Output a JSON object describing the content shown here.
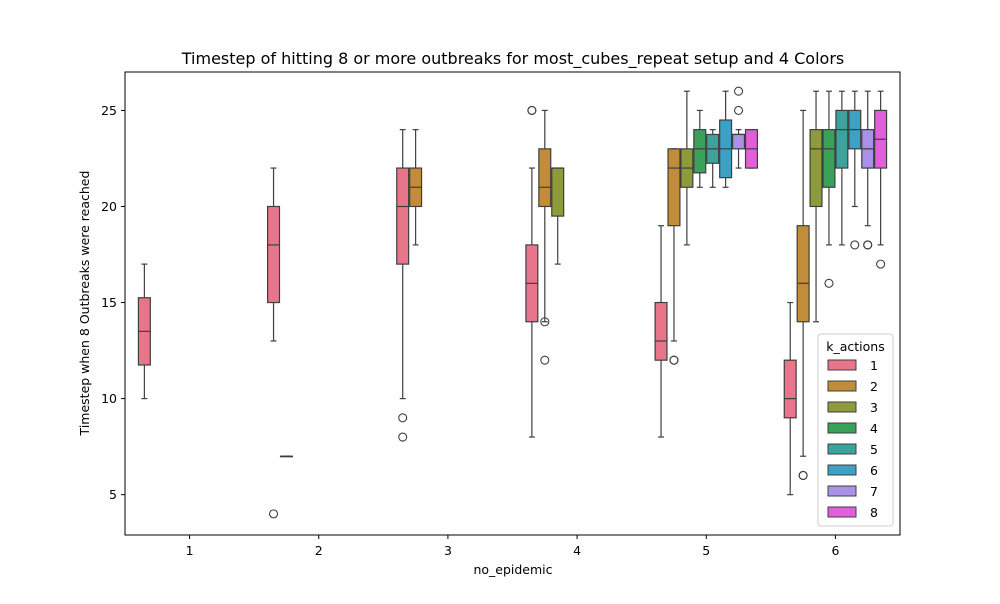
{
  "chart_data": {
    "type": "box",
    "title": "Timestep of hitting 8 or more outbreaks for most_cubes_repeat setup and 4 Colors",
    "xlabel": "no_epidemic",
    "ylabel": "Timestep when 8 Outbreaks were reached",
    "categories": [
      "1",
      "2",
      "3",
      "4",
      "5",
      "6"
    ],
    "ylim": [
      2.9,
      27.0
    ],
    "yticks": [
      5,
      10,
      15,
      20,
      25
    ],
    "legend": {
      "title": "k_actions",
      "placement": "lower-right",
      "entries": [
        {
          "label": "1",
          "color": "#e8768a"
        },
        {
          "label": "2",
          "color": "#c18d3a"
        },
        {
          "label": "3",
          "color": "#8f9a3c"
        },
        {
          "label": "4",
          "color": "#3aa15b"
        },
        {
          "label": "5",
          "color": "#3ba39c"
        },
        {
          "label": "6",
          "color": "#3da1c4"
        },
        {
          "label": "7",
          "color": "#a990e8"
        },
        {
          "label": "8",
          "color": "#e15fdb"
        }
      ]
    },
    "series": [
      {
        "name": "1",
        "boxes": [
          {
            "category": "1",
            "whislo": 10,
            "q1": 11.75,
            "med": 13.5,
            "q3": 15.25,
            "whishi": 17,
            "fliers": []
          },
          {
            "category": "2",
            "whislo": 13,
            "q1": 15,
            "med": 18,
            "q3": 20,
            "whishi": 22,
            "fliers": [
              4
            ]
          },
          {
            "category": "3",
            "whislo": 10,
            "q1": 17,
            "med": 20,
            "q3": 22,
            "whishi": 24,
            "fliers": [
              9,
              8
            ]
          },
          {
            "category": "4",
            "whislo": 8,
            "q1": 14,
            "med": 16,
            "q3": 18,
            "whishi": 22,
            "fliers": [
              25,
              25
            ]
          },
          {
            "category": "5",
            "whislo": 8,
            "q1": 12,
            "med": 13,
            "q3": 15,
            "whishi": 19,
            "fliers": []
          },
          {
            "category": "6",
            "whislo": 5,
            "q1": 9,
            "med": 10,
            "q3": 12,
            "whishi": 15,
            "fliers": []
          }
        ]
      },
      {
        "name": "2",
        "boxes": [
          {
            "category": "2",
            "whislo": 7,
            "q1": 7,
            "med": 7,
            "q3": 7,
            "whishi": 7,
            "fliers": []
          },
          {
            "category": "3",
            "whislo": 18,
            "q1": 20,
            "med": 21,
            "q3": 22,
            "whishi": 24,
            "fliers": []
          },
          {
            "category": "4",
            "whislo": 14,
            "q1": 20,
            "med": 21,
            "q3": 23,
            "whishi": 25,
            "fliers": [
              14,
              12
            ]
          },
          {
            "category": "5",
            "whislo": 13,
            "q1": 19,
            "med": 22,
            "q3": 23,
            "whishi": 23,
            "fliers": [
              12,
              12
            ]
          },
          {
            "category": "6",
            "whislo": 7,
            "q1": 14,
            "med": 16,
            "q3": 19,
            "whishi": 25,
            "fliers": [
              6,
              6
            ]
          }
        ]
      },
      {
        "name": "3",
        "boxes": [
          {
            "category": "4",
            "whislo": 17,
            "q1": 19.5,
            "med": 22,
            "q3": 22,
            "whishi": 22,
            "fliers": []
          },
          {
            "category": "5",
            "whislo": 18,
            "q1": 21,
            "med": 22,
            "q3": 23,
            "whishi": 26,
            "fliers": []
          },
          {
            "category": "6",
            "whislo": 14,
            "q1": 20,
            "med": 23,
            "q3": 24,
            "whishi": 26,
            "fliers": []
          }
        ]
      },
      {
        "name": "4",
        "boxes": [
          {
            "category": "5",
            "whislo": 21,
            "q1": 21.75,
            "med": 23,
            "q3": 24,
            "whishi": 25,
            "fliers": []
          },
          {
            "category": "6",
            "whislo": 18,
            "q1": 21,
            "med": 23,
            "q3": 24,
            "whishi": 26,
            "fliers": [
              16
            ]
          }
        ]
      },
      {
        "name": "5",
        "boxes": [
          {
            "category": "5",
            "whislo": 21,
            "q1": 22.25,
            "med": 23,
            "q3": 23.75,
            "whishi": 24,
            "fliers": []
          },
          {
            "category": "6",
            "whislo": 18,
            "q1": 22,
            "med": 24,
            "q3": 25,
            "whishi": 26,
            "fliers": []
          }
        ]
      },
      {
        "name": "6",
        "boxes": [
          {
            "category": "5",
            "whislo": 21,
            "q1": 21.5,
            "med": 23,
            "q3": 24.5,
            "whishi": 26,
            "fliers": []
          },
          {
            "category": "6",
            "whislo": 20,
            "q1": 23,
            "med": 24,
            "q3": 25,
            "whishi": 26,
            "fliers": [
              18
            ]
          }
        ]
      },
      {
        "name": "7",
        "boxes": [
          {
            "category": "5",
            "whislo": 22,
            "q1": 23,
            "med": 23.75,
            "q3": 23.75,
            "whishi": 24,
            "fliers": [
              26,
              25
            ]
          },
          {
            "category": "6",
            "whislo": 19,
            "q1": 22,
            "med": 23,
            "q3": 24,
            "whishi": 26,
            "fliers": [
              18,
              18
            ]
          }
        ]
      },
      {
        "name": "8",
        "boxes": [
          {
            "category": "5",
            "whislo": 22,
            "q1": 22,
            "med": 23,
            "q3": 24,
            "whishi": 24,
            "fliers": []
          },
          {
            "category": "6",
            "whislo": 18,
            "q1": 22,
            "med": 23.5,
            "q3": 25,
            "whishi": 26,
            "fliers": [
              17
            ]
          }
        ]
      }
    ]
  }
}
